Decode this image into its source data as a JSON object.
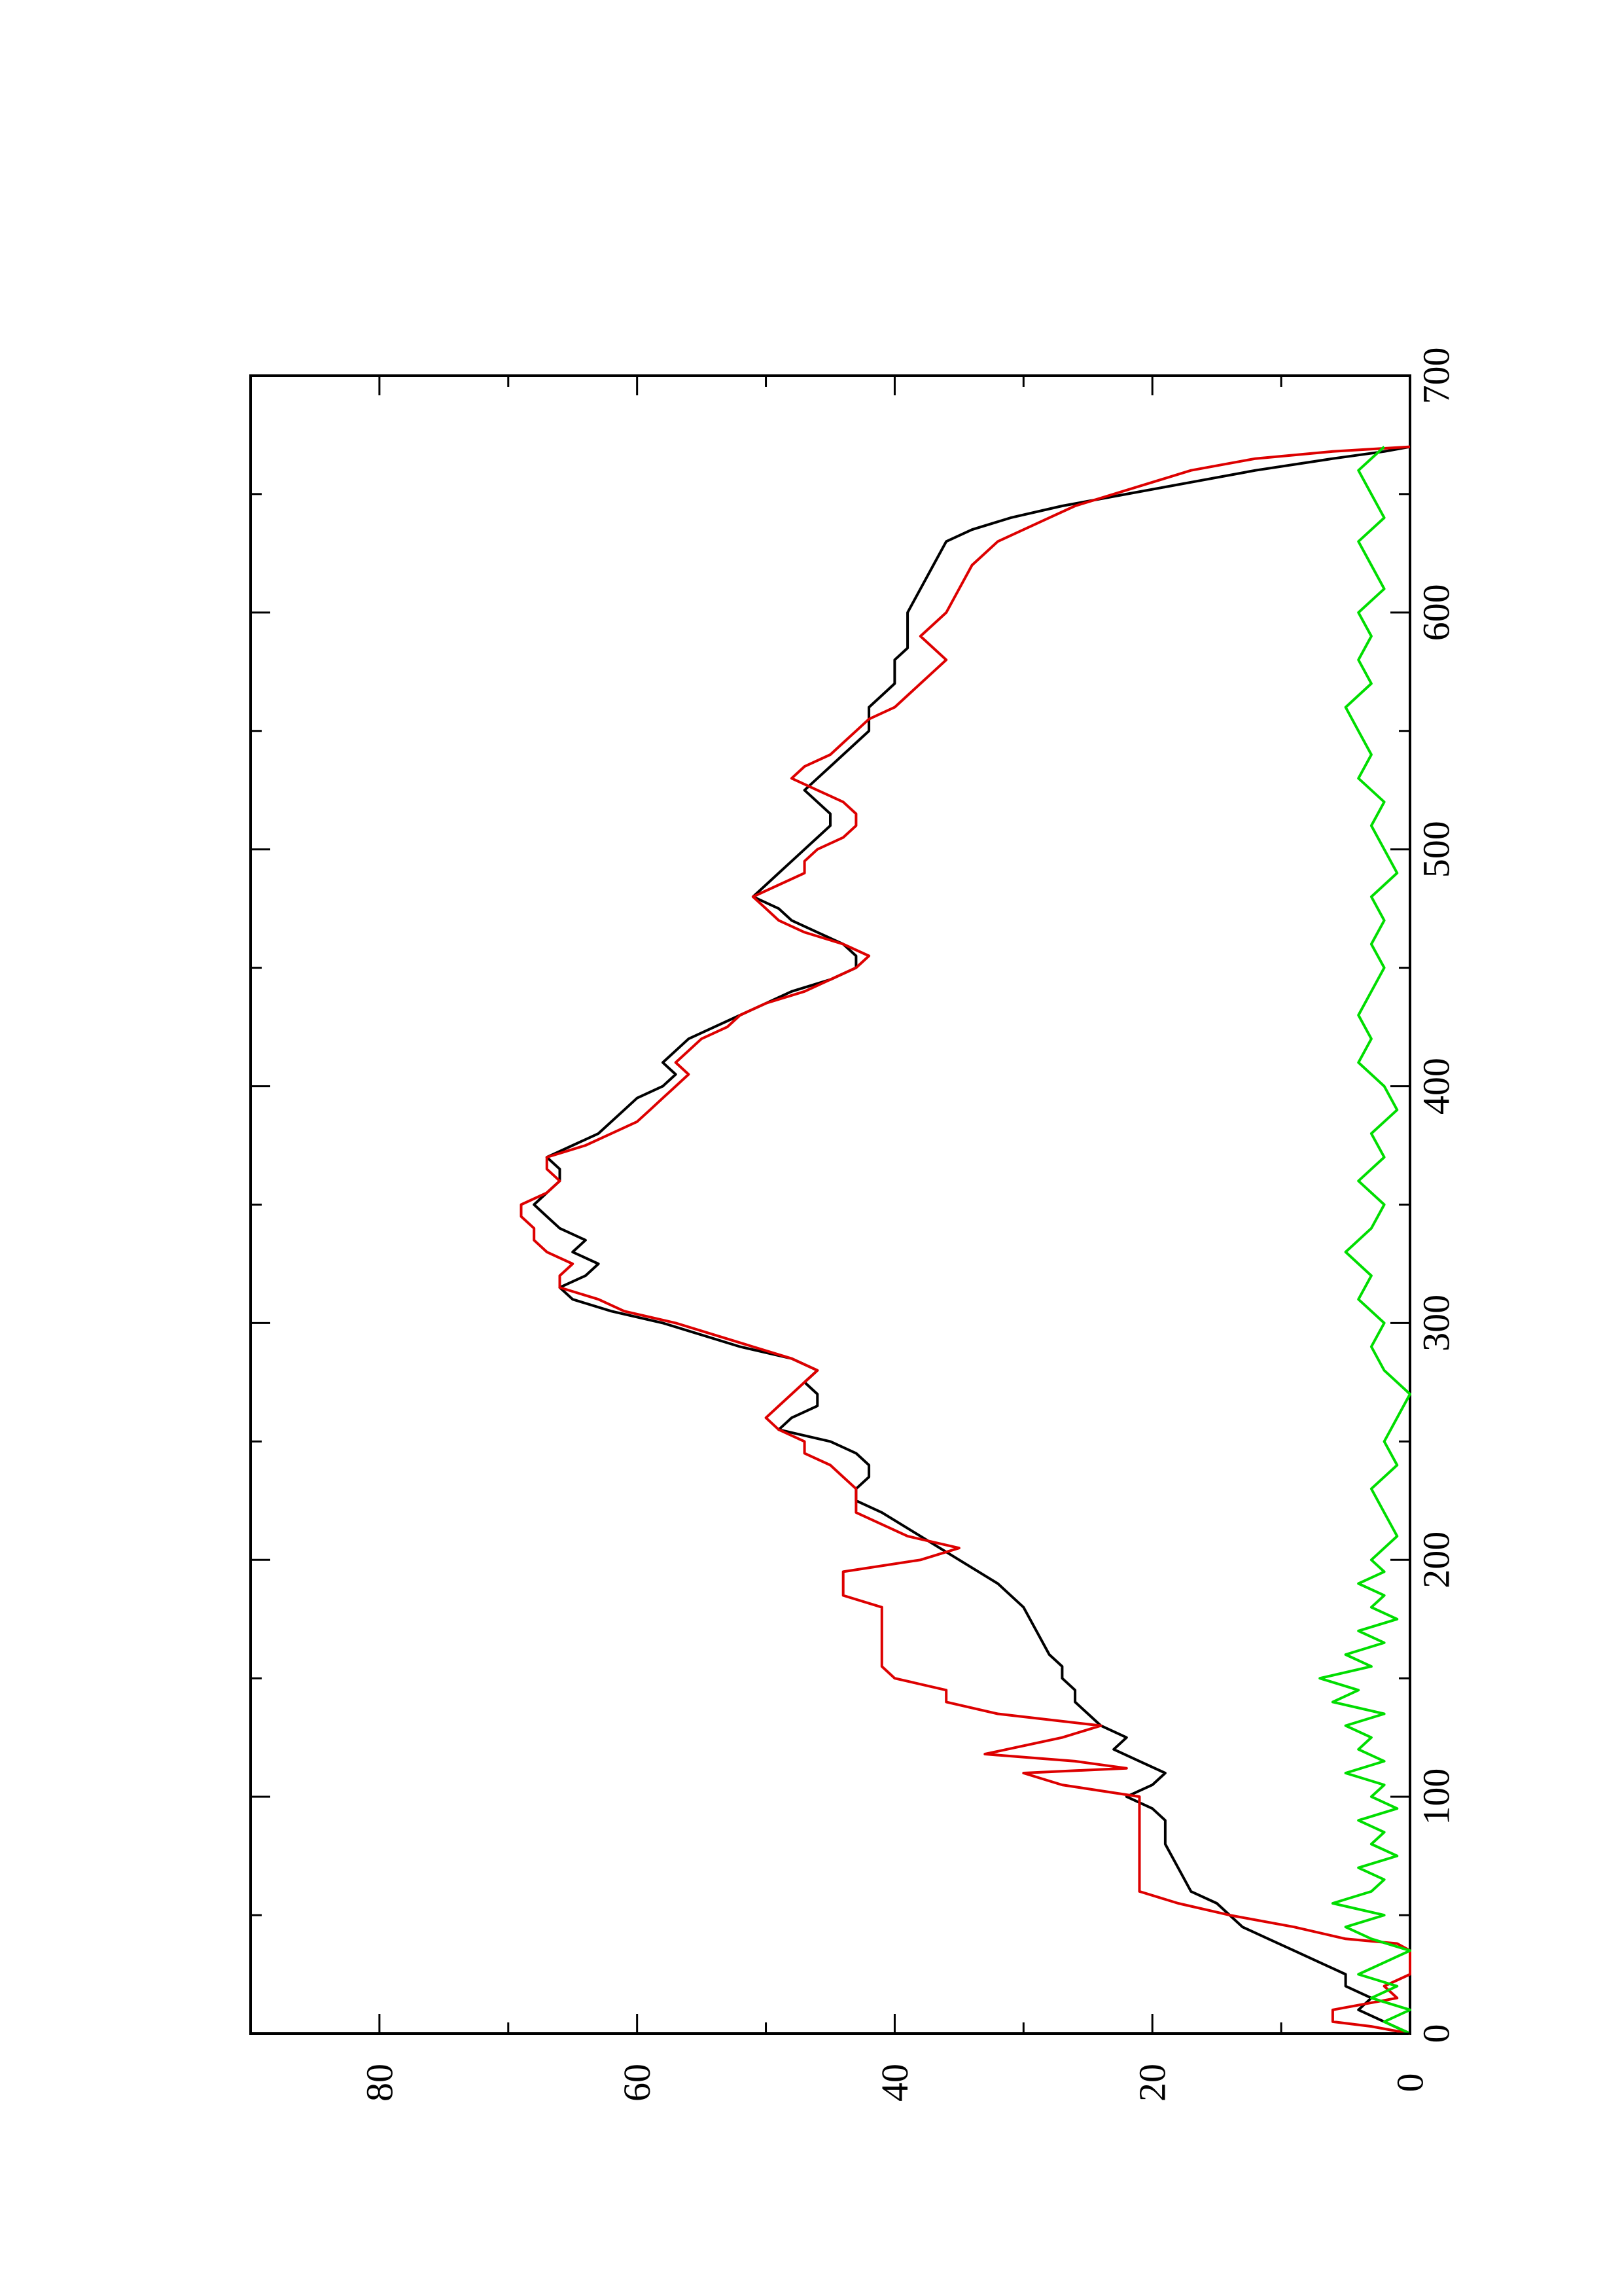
{
  "chart_data": {
    "type": "line",
    "orientation": "rotated-90-ccw",
    "title": "",
    "xlabel": "",
    "ylabel": "",
    "xlim": [
      0,
      700
    ],
    "ylim": [
      0,
      90
    ],
    "grid": false,
    "x_ticks": [
      0,
      100,
      200,
      300,
      400,
      500,
      600,
      700
    ],
    "x_minor_ticks": [
      50,
      150,
      250,
      350,
      450,
      550,
      650
    ],
    "y_ticks": [
      0,
      20,
      40,
      60,
      80
    ],
    "y_minor_ticks": [
      10,
      30,
      50,
      70
    ],
    "series": [
      {
        "color": "#000000",
        "points": [
          [
            0,
            0
          ],
          [
            5,
            2
          ],
          [
            10,
            4
          ],
          [
            15,
            3
          ],
          [
            20,
            5
          ],
          [
            25,
            5
          ],
          [
            30,
            7
          ],
          [
            35,
            9
          ],
          [
            40,
            11
          ],
          [
            45,
            13
          ],
          [
            50,
            14
          ],
          [
            55,
            15
          ],
          [
            60,
            17
          ],
          [
            70,
            18
          ],
          [
            80,
            19
          ],
          [
            90,
            19
          ],
          [
            95,
            20
          ],
          [
            100,
            22
          ],
          [
            105,
            20
          ],
          [
            110,
            19
          ],
          [
            115,
            21
          ],
          [
            120,
            23
          ],
          [
            125,
            22
          ],
          [
            130,
            24
          ],
          [
            135,
            25
          ],
          [
            140,
            26
          ],
          [
            145,
            26
          ],
          [
            150,
            27
          ],
          [
            155,
            27
          ],
          [
            160,
            28
          ],
          [
            170,
            29
          ],
          [
            180,
            30
          ],
          [
            190,
            32
          ],
          [
            200,
            35
          ],
          [
            210,
            38
          ],
          [
            220,
            41
          ],
          [
            225,
            43
          ],
          [
            230,
            43
          ],
          [
            235,
            42
          ],
          [
            240,
            42
          ],
          [
            245,
            43
          ],
          [
            250,
            45
          ],
          [
            255,
            49
          ],
          [
            260,
            48
          ],
          [
            265,
            46
          ],
          [
            270,
            46
          ],
          [
            275,
            47
          ],
          [
            280,
            46
          ],
          [
            285,
            48
          ],
          [
            290,
            52
          ],
          [
            300,
            58
          ],
          [
            305,
            62
          ],
          [
            310,
            65
          ],
          [
            315,
            66
          ],
          [
            320,
            64
          ],
          [
            325,
            63
          ],
          [
            330,
            65
          ],
          [
            335,
            64
          ],
          [
            340,
            66
          ],
          [
            345,
            67
          ],
          [
            350,
            68
          ],
          [
            355,
            67
          ],
          [
            360,
            66
          ],
          [
            365,
            66
          ],
          [
            370,
            67
          ],
          [
            375,
            65
          ],
          [
            380,
            63
          ],
          [
            385,
            62
          ],
          [
            390,
            61
          ],
          [
            395,
            60
          ],
          [
            400,
            58
          ],
          [
            405,
            57
          ],
          [
            410,
            58
          ],
          [
            415,
            57
          ],
          [
            420,
            56
          ],
          [
            425,
            54
          ],
          [
            430,
            52
          ],
          [
            435,
            50
          ],
          [
            440,
            48
          ],
          [
            445,
            45
          ],
          [
            450,
            43
          ],
          [
            455,
            43
          ],
          [
            460,
            44
          ],
          [
            465,
            46
          ],
          [
            470,
            48
          ],
          [
            475,
            49
          ],
          [
            480,
            51
          ],
          [
            485,
            50
          ],
          [
            490,
            49
          ],
          [
            495,
            48
          ],
          [
            500,
            47
          ],
          [
            505,
            46
          ],
          [
            510,
            45
          ],
          [
            515,
            45
          ],
          [
            520,
            46
          ],
          [
            525,
            47
          ],
          [
            530,
            46
          ],
          [
            535,
            45
          ],
          [
            540,
            44
          ],
          [
            545,
            43
          ],
          [
            550,
            42
          ],
          [
            555,
            42
          ],
          [
            560,
            42
          ],
          [
            565,
            41
          ],
          [
            570,
            40
          ],
          [
            575,
            40
          ],
          [
            580,
            40
          ],
          [
            585,
            39
          ],
          [
            590,
            39
          ],
          [
            600,
            39
          ],
          [
            610,
            38
          ],
          [
            620,
            37
          ],
          [
            630,
            36
          ],
          [
            635,
            34
          ],
          [
            640,
            31
          ],
          [
            645,
            27
          ],
          [
            650,
            22
          ],
          [
            655,
            17
          ],
          [
            660,
            12
          ],
          [
            665,
            6
          ],
          [
            668,
            2
          ],
          [
            670,
            0
          ]
        ]
      },
      {
        "color": "#dd0000",
        "points": [
          [
            0,
            0
          ],
          [
            3,
            3
          ],
          [
            5,
            6
          ],
          [
            10,
            6
          ],
          [
            15,
            1
          ],
          [
            20,
            2
          ],
          [
            25,
            0
          ],
          [
            30,
            0
          ],
          [
            35,
            0
          ],
          [
            38,
            1
          ],
          [
            40,
            5
          ],
          [
            45,
            9
          ],
          [
            50,
            14
          ],
          [
            55,
            18
          ],
          [
            60,
            21
          ],
          [
            70,
            21
          ],
          [
            80,
            21
          ],
          [
            90,
            21
          ],
          [
            95,
            21
          ],
          [
            100,
            21
          ],
          [
            105,
            27
          ],
          [
            110,
            30
          ],
          [
            112,
            22
          ],
          [
            115,
            26
          ],
          [
            118,
            33
          ],
          [
            125,
            27
          ],
          [
            130,
            24
          ],
          [
            135,
            32
          ],
          [
            140,
            36
          ],
          [
            145,
            36
          ],
          [
            150,
            40
          ],
          [
            155,
            41
          ],
          [
            160,
            41
          ],
          [
            170,
            41
          ],
          [
            180,
            41
          ],
          [
            185,
            44
          ],
          [
            190,
            44
          ],
          [
            195,
            44
          ],
          [
            200,
            38
          ],
          [
            205,
            35
          ],
          [
            210,
            39
          ],
          [
            220,
            43
          ],
          [
            225,
            43
          ],
          [
            230,
            43
          ],
          [
            235,
            44
          ],
          [
            240,
            45
          ],
          [
            245,
            47
          ],
          [
            250,
            47
          ],
          [
            255,
            49
          ],
          [
            260,
            50
          ],
          [
            265,
            49
          ],
          [
            270,
            48
          ],
          [
            275,
            47
          ],
          [
            280,
            46
          ],
          [
            285,
            48
          ],
          [
            290,
            51
          ],
          [
            300,
            57
          ],
          [
            305,
            61
          ],
          [
            310,
            63
          ],
          [
            315,
            66
          ],
          [
            320,
            66
          ],
          [
            325,
            65
          ],
          [
            330,
            67
          ],
          [
            335,
            68
          ],
          [
            340,
            68
          ],
          [
            345,
            69
          ],
          [
            350,
            69
          ],
          [
            355,
            67
          ],
          [
            360,
            66
          ],
          [
            365,
            67
          ],
          [
            370,
            67
          ],
          [
            375,
            64
          ],
          [
            380,
            62
          ],
          [
            385,
            60
          ],
          [
            390,
            59
          ],
          [
            395,
            58
          ],
          [
            400,
            57
          ],
          [
            405,
            56
          ],
          [
            410,
            57
          ],
          [
            415,
            56
          ],
          [
            420,
            55
          ],
          [
            425,
            53
          ],
          [
            430,
            52
          ],
          [
            435,
            50
          ],
          [
            440,
            47
          ],
          [
            445,
            45
          ],
          [
            450,
            43
          ],
          [
            455,
            42
          ],
          [
            460,
            44
          ],
          [
            465,
            47
          ],
          [
            470,
            49
          ],
          [
            475,
            50
          ],
          [
            480,
            51
          ],
          [
            485,
            49
          ],
          [
            490,
            47
          ],
          [
            495,
            47
          ],
          [
            500,
            46
          ],
          [
            505,
            44
          ],
          [
            510,
            43
          ],
          [
            515,
            43
          ],
          [
            520,
            44
          ],
          [
            525,
            46
          ],
          [
            530,
            48
          ],
          [
            535,
            47
          ],
          [
            540,
            45
          ],
          [
            545,
            44
          ],
          [
            550,
            43
          ],
          [
            555,
            42
          ],
          [
            560,
            40
          ],
          [
            565,
            39
          ],
          [
            570,
            38
          ],
          [
            575,
            37
          ],
          [
            580,
            36
          ],
          [
            585,
            37
          ],
          [
            590,
            38
          ],
          [
            595,
            37
          ],
          [
            600,
            36
          ],
          [
            610,
            35
          ],
          [
            620,
            34
          ],
          [
            630,
            32
          ],
          [
            640,
            28
          ],
          [
            645,
            26
          ],
          [
            650,
            23
          ],
          [
            655,
            20
          ],
          [
            660,
            17
          ],
          [
            665,
            12
          ],
          [
            668,
            6
          ],
          [
            670,
            0
          ]
        ]
      },
      {
        "color": "#00dd00",
        "points": [
          [
            0,
            0
          ],
          [
            5,
            2
          ],
          [
            10,
            0
          ],
          [
            15,
            3
          ],
          [
            20,
            1
          ],
          [
            25,
            4
          ],
          [
            30,
            2
          ],
          [
            35,
            0
          ],
          [
            40,
            3
          ],
          [
            45,
            5
          ],
          [
            50,
            2
          ],
          [
            55,
            6
          ],
          [
            60,
            3
          ],
          [
            65,
            2
          ],
          [
            70,
            4
          ],
          [
            75,
            1
          ],
          [
            80,
            3
          ],
          [
            85,
            2
          ],
          [
            90,
            4
          ],
          [
            95,
            1
          ],
          [
            100,
            3
          ],
          [
            105,
            2
          ],
          [
            110,
            5
          ],
          [
            115,
            2
          ],
          [
            120,
            4
          ],
          [
            125,
            3
          ],
          [
            130,
            5
          ],
          [
            135,
            2
          ],
          [
            140,
            6
          ],
          [
            145,
            4
          ],
          [
            150,
            7
          ],
          [
            155,
            3
          ],
          [
            160,
            5
          ],
          [
            165,
            2
          ],
          [
            170,
            4
          ],
          [
            175,
            1
          ],
          [
            180,
            3
          ],
          [
            185,
            2
          ],
          [
            190,
            4
          ],
          [
            195,
            2
          ],
          [
            200,
            3
          ],
          [
            210,
            1
          ],
          [
            220,
            2
          ],
          [
            230,
            3
          ],
          [
            240,
            1
          ],
          [
            250,
            2
          ],
          [
            260,
            1
          ],
          [
            270,
            0
          ],
          [
            280,
            2
          ],
          [
            290,
            3
          ],
          [
            300,
            2
          ],
          [
            310,
            4
          ],
          [
            320,
            3
          ],
          [
            330,
            5
          ],
          [
            340,
            3
          ],
          [
            350,
            2
          ],
          [
            360,
            4
          ],
          [
            370,
            2
          ],
          [
            380,
            3
          ],
          [
            390,
            1
          ],
          [
            400,
            2
          ],
          [
            410,
            4
          ],
          [
            420,
            3
          ],
          [
            430,
            4
          ],
          [
            440,
            3
          ],
          [
            450,
            2
          ],
          [
            460,
            3
          ],
          [
            470,
            2
          ],
          [
            480,
            3
          ],
          [
            490,
            1
          ],
          [
            500,
            2
          ],
          [
            510,
            3
          ],
          [
            520,
            2
          ],
          [
            530,
            4
          ],
          [
            540,
            3
          ],
          [
            550,
            4
          ],
          [
            560,
            5
          ],
          [
            570,
            3
          ],
          [
            580,
            4
          ],
          [
            590,
            3
          ],
          [
            600,
            4
          ],
          [
            610,
            2
          ],
          [
            620,
            3
          ],
          [
            630,
            4
          ],
          [
            640,
            2
          ],
          [
            650,
            3
          ],
          [
            660,
            4
          ],
          [
            670,
            2
          ]
        ]
      }
    ]
  }
}
